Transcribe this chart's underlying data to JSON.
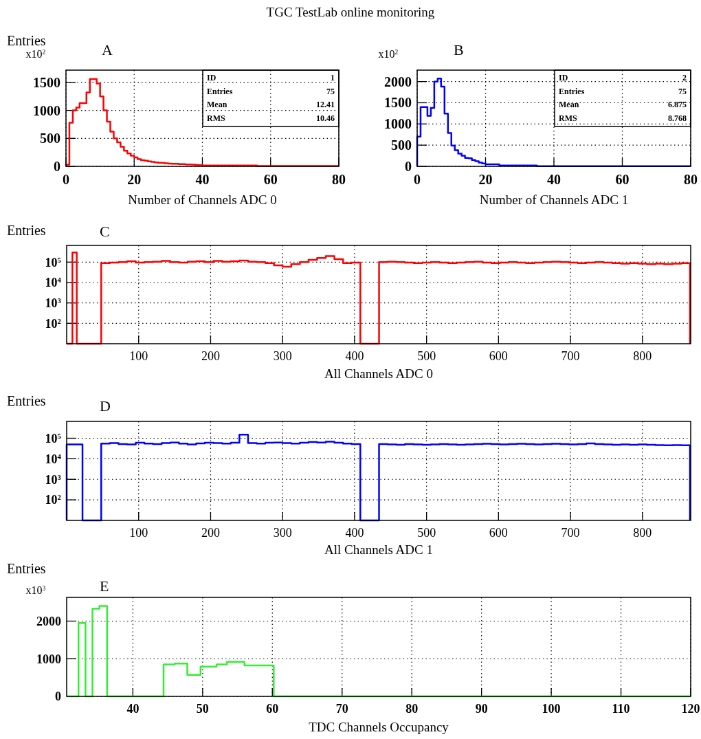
{
  "chart_data": [
    {
      "type": "histogram",
      "title": "TGC TestLab online monitoring",
      "subtitle": "A",
      "xlabel": "Number of Channels ADC 0",
      "ylabel": "Entries",
      "color": "#ff0000",
      "bins": [
        0,
        1,
        2,
        3,
        4,
        5,
        6,
        7,
        8,
        9,
        10,
        11,
        12,
        13,
        14,
        15,
        16,
        17,
        18,
        19,
        20,
        21,
        22,
        23,
        24,
        25,
        26,
        27,
        28,
        29,
        30,
        31,
        32,
        33,
        34,
        35,
        36,
        37,
        38,
        39,
        40,
        41,
        42,
        43,
        44,
        45,
        46,
        47,
        48,
        49,
        50,
        51,
        52,
        53,
        54,
        55,
        56,
        57,
        58,
        59,
        60,
        61,
        62,
        63,
        64,
        65,
        66,
        67,
        68,
        69,
        70,
        71,
        72,
        73,
        74,
        75,
        76,
        77,
        78,
        79,
        80
      ],
      "values": [
        30,
        780,
        1000,
        1050,
        1130,
        1130,
        1320,
        1560,
        1560,
        1480,
        1250,
        1000,
        800,
        620,
        500,
        430,
        350,
        280,
        230,
        190,
        160,
        130,
        110,
        100,
        90,
        80,
        70,
        65,
        60,
        55,
        50,
        45,
        45,
        40,
        40,
        35,
        35,
        30,
        25,
        20,
        15,
        15,
        15,
        15,
        15,
        15,
        15,
        15,
        15,
        15,
        15,
        15,
        15,
        15,
        15,
        15,
        5,
        5,
        5,
        5,
        5,
        5,
        5,
        5,
        5,
        5,
        5,
        5,
        5,
        5,
        5,
        5,
        5,
        5,
        5,
        5,
        5,
        5,
        5,
        5
      ],
      "xlim": [
        0,
        80
      ],
      "xticks": [
        0,
        20,
        40,
        60,
        80
      ],
      "ylim": [
        0,
        1720
      ],
      "yticks": [
        0,
        500,
        1000,
        1500
      ],
      "grid": true,
      "annotations": [
        "x10$^{2}$",
        "ID",
        "1",
        "Entries",
        "75",
        "Mean",
        "12.41",
        "RMS",
        "10.46"
      ]
    },
    {
      "type": "histogram",
      "subtitle": "B",
      "xlabel": "Number of Channels ADC 1",
      "color": "#0000ff",
      "bins": [
        0,
        1,
        2,
        3,
        4,
        5,
        6,
        7,
        8,
        9,
        10,
        11,
        12,
        13,
        14,
        15,
        16,
        17,
        18,
        19,
        20,
        21,
        22,
        23,
        24,
        25,
        26,
        27,
        28,
        29,
        30,
        31,
        32,
        33,
        34,
        35,
        36,
        37,
        38,
        39,
        40,
        41,
        42,
        43,
        44,
        45,
        46,
        47,
        48,
        49,
        50,
        51,
        52,
        53,
        54,
        55,
        56,
        57,
        58,
        59,
        60,
        61,
        62,
        63,
        64,
        65,
        66,
        67,
        68,
        69,
        70,
        71,
        72,
        73,
        74,
        75,
        76,
        77,
        78,
        79,
        80
      ],
      "values": [
        700,
        1400,
        1400,
        1190,
        1380,
        2000,
        2070,
        1880,
        1245,
        785,
        490,
        380,
        300,
        250,
        200,
        190,
        150,
        120,
        90,
        70,
        50,
        50,
        50,
        50,
        20,
        20,
        20,
        20,
        20,
        20,
        20,
        20,
        20,
        20,
        20,
        3,
        3,
        3,
        3,
        3,
        3,
        3,
        3,
        3,
        3,
        3,
        3,
        3,
        3,
        3,
        3,
        3,
        3,
        3,
        3,
        3,
        3,
        3,
        3,
        3,
        3,
        3,
        3,
        3,
        3,
        3,
        3,
        3,
        3,
        3,
        3,
        3,
        3,
        3,
        3,
        3,
        3,
        3,
        3,
        3
      ],
      "xlim": [
        0,
        80
      ],
      "xticks": [
        0,
        20,
        40,
        60,
        80
      ],
      "ylim": [
        0,
        2270
      ],
      "yticks": [
        0,
        500,
        1000,
        1500,
        2000
      ],
      "grid": true,
      "annotations": [
        "x10$^{2}$",
        "ID",
        "2",
        "Entries",
        "75",
        "Mean",
        "6.875",
        "RMS",
        "8.768"
      ]
    },
    {
      "type": "histogram",
      "subtitle": "C",
      "xlabel": "All Channels ADC 0",
      "ylabel": "Entries",
      "color": "#ff0000",
      "log": "y",
      "bins": [
        0,
        8,
        14,
        48,
        60,
        72,
        84,
        96,
        108,
        120,
        132,
        144,
        156,
        168,
        180,
        192,
        204,
        216,
        228,
        240,
        252,
        264,
        276,
        288,
        300,
        312,
        324,
        336,
        348,
        360,
        372,
        384,
        396,
        408,
        434,
        446,
        458,
        470,
        482,
        494,
        506,
        518,
        530,
        542,
        554,
        566,
        578,
        590,
        602,
        614,
        626,
        638,
        650,
        662,
        674,
        686,
        698,
        710,
        722,
        734,
        746,
        758,
        770,
        782,
        794,
        806,
        818,
        830,
        842,
        854,
        866
      ],
      "values": [
        null,
        300000,
        null,
        90000,
        95000,
        100000,
        110000,
        95000,
        100000,
        105000,
        115000,
        100000,
        95000,
        105000,
        110000,
        100000,
        115000,
        105000,
        110000,
        120000,
        105000,
        100000,
        90000,
        70000,
        60000,
        80000,
        100000,
        130000,
        160000,
        200000,
        140000,
        90000,
        95000,
        null,
        100000,
        105000,
        100000,
        95000,
        90000,
        95000,
        100000,
        95000,
        90000,
        95000,
        100000,
        105000,
        95000,
        90000,
        95000,
        100000,
        95000,
        90000,
        95000,
        100000,
        105000,
        100000,
        95000,
        90000,
        95000,
        100000,
        95000,
        90000,
        85000,
        90000,
        85000,
        80000,
        85000,
        80000,
        85000,
        90000
      ],
      "xlim": [
        0,
        867
      ],
      "xticks": [
        100,
        200,
        300,
        400,
        500,
        600,
        700,
        800
      ],
      "ylim": [
        10,
        660000
      ],
      "yticks": [
        {
          "value": 100,
          "label": "10$^{2}$"
        },
        {
          "value": 1000,
          "label": "10$^{3}$"
        },
        {
          "value": 10000,
          "label": "10$^{4}$"
        },
        {
          "value": 100000,
          "label": "10$^{5}$"
        }
      ],
      "grid": true
    },
    {
      "type": "histogram",
      "subtitle": "D",
      "xlabel": "All Channels ADC 1",
      "ylabel": "Entries",
      "color": "#0000ff",
      "log": "y",
      "bins": [
        0,
        22,
        48,
        60,
        72,
        84,
        96,
        108,
        120,
        132,
        144,
        156,
        168,
        180,
        192,
        204,
        216,
        228,
        240,
        252,
        264,
        276,
        288,
        300,
        312,
        324,
        336,
        348,
        360,
        372,
        384,
        396,
        408,
        434,
        446,
        458,
        470,
        482,
        494,
        506,
        518,
        530,
        542,
        554,
        566,
        578,
        590,
        602,
        614,
        626,
        638,
        650,
        662,
        674,
        686,
        698,
        710,
        722,
        734,
        746,
        758,
        770,
        782,
        794,
        806,
        818,
        830,
        842,
        854,
        866
      ],
      "values": [
        50000,
        null,
        55000,
        58000,
        52000,
        50000,
        60000,
        55000,
        52000,
        58000,
        62000,
        55000,
        50000,
        56000,
        60000,
        58000,
        55000,
        60000,
        150000,
        58000,
        55000,
        60000,
        62000,
        58000,
        55000,
        60000,
        65000,
        62000,
        68000,
        60000,
        55000,
        52000,
        null,
        52000,
        50000,
        48000,
        52000,
        50000,
        48000,
        50000,
        52000,
        50000,
        48000,
        50000,
        52000,
        54000,
        52000,
        50000,
        52000,
        54000,
        52000,
        50000,
        52000,
        54000,
        52000,
        50000,
        52000,
        56000,
        52000,
        50000,
        48000,
        50000,
        48000,
        50000,
        48000,
        46000,
        45000,
        46000,
        45000
      ],
      "xlim": [
        0,
        867
      ],
      "xticks": [
        100,
        200,
        300,
        400,
        500,
        600,
        700,
        800
      ],
      "ylim": [
        10,
        660000
      ],
      "yticks": [
        {
          "value": 100,
          "label": "10$^{2}$"
        },
        {
          "value": 1000,
          "label": "10$^{3}$"
        },
        {
          "value": 10000,
          "label": "10$^{4}$"
        },
        {
          "value": 100000,
          "label": "10$^{5}$"
        }
      ],
      "grid": true
    },
    {
      "type": "histogram",
      "subtitle": "E",
      "xlabel": "TDC Channels Occupancy",
      "ylabel": "Entries",
      "color": "#33ee33",
      "bins": [
        30.5,
        32.2,
        33.2,
        34.2,
        35.2,
        36.3,
        44.4,
        46,
        47.8,
        49.7,
        52,
        53.5,
        56,
        60.2,
        120
      ],
      "values": [
        0,
        1950,
        0,
        2330,
        2400,
        0,
        850,
        870,
        570,
        790,
        850,
        920,
        820,
        0
      ],
      "xlim": [
        30.5,
        120
      ],
      "xticks": [
        40,
        50,
        60,
        70,
        80,
        90,
        100,
        110,
        120
      ],
      "ylim": [
        0,
        2630
      ],
      "yticks": [
        0,
        1000,
        2000
      ],
      "grid": true,
      "annotations": [
        "x10$^{3}$"
      ]
    }
  ]
}
